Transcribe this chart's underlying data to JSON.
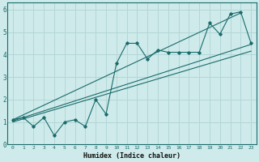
{
  "xlabel": "Humidex (Indice chaleur)",
  "bg_color": "#ceeaea",
  "grid_color": "#b0d4d4",
  "line_color": "#1a6b6b",
  "xlim": [
    -0.5,
    23.5
  ],
  "ylim": [
    0,
    6.3
  ],
  "xticks": [
    0,
    1,
    2,
    3,
    4,
    5,
    6,
    7,
    8,
    9,
    10,
    11,
    12,
    13,
    14,
    15,
    16,
    17,
    18,
    19,
    20,
    21,
    22,
    23
  ],
  "yticks": [
    0,
    1,
    2,
    3,
    4,
    5,
    6
  ],
  "scatter_x": [
    0,
    1,
    2,
    3,
    4,
    5,
    6,
    7,
    8,
    9,
    10,
    11,
    12,
    13,
    14,
    15,
    16,
    17,
    18,
    19,
    20,
    21,
    22,
    23
  ],
  "scatter_y": [
    1.1,
    1.2,
    0.8,
    1.2,
    0.4,
    1.0,
    1.1,
    0.8,
    2.0,
    1.35,
    3.6,
    4.5,
    4.5,
    3.8,
    4.2,
    4.1,
    4.1,
    4.1,
    4.1,
    5.4,
    4.9,
    5.8,
    5.9,
    4.5
  ],
  "trend1_x": [
    0,
    23
  ],
  "trend1_y": [
    1.05,
    4.45
  ],
  "trend2_x": [
    0,
    22
  ],
  "trend2_y": [
    1.1,
    5.85
  ],
  "trend3_x": [
    0,
    23
  ],
  "trend3_y": [
    1.0,
    4.15
  ]
}
